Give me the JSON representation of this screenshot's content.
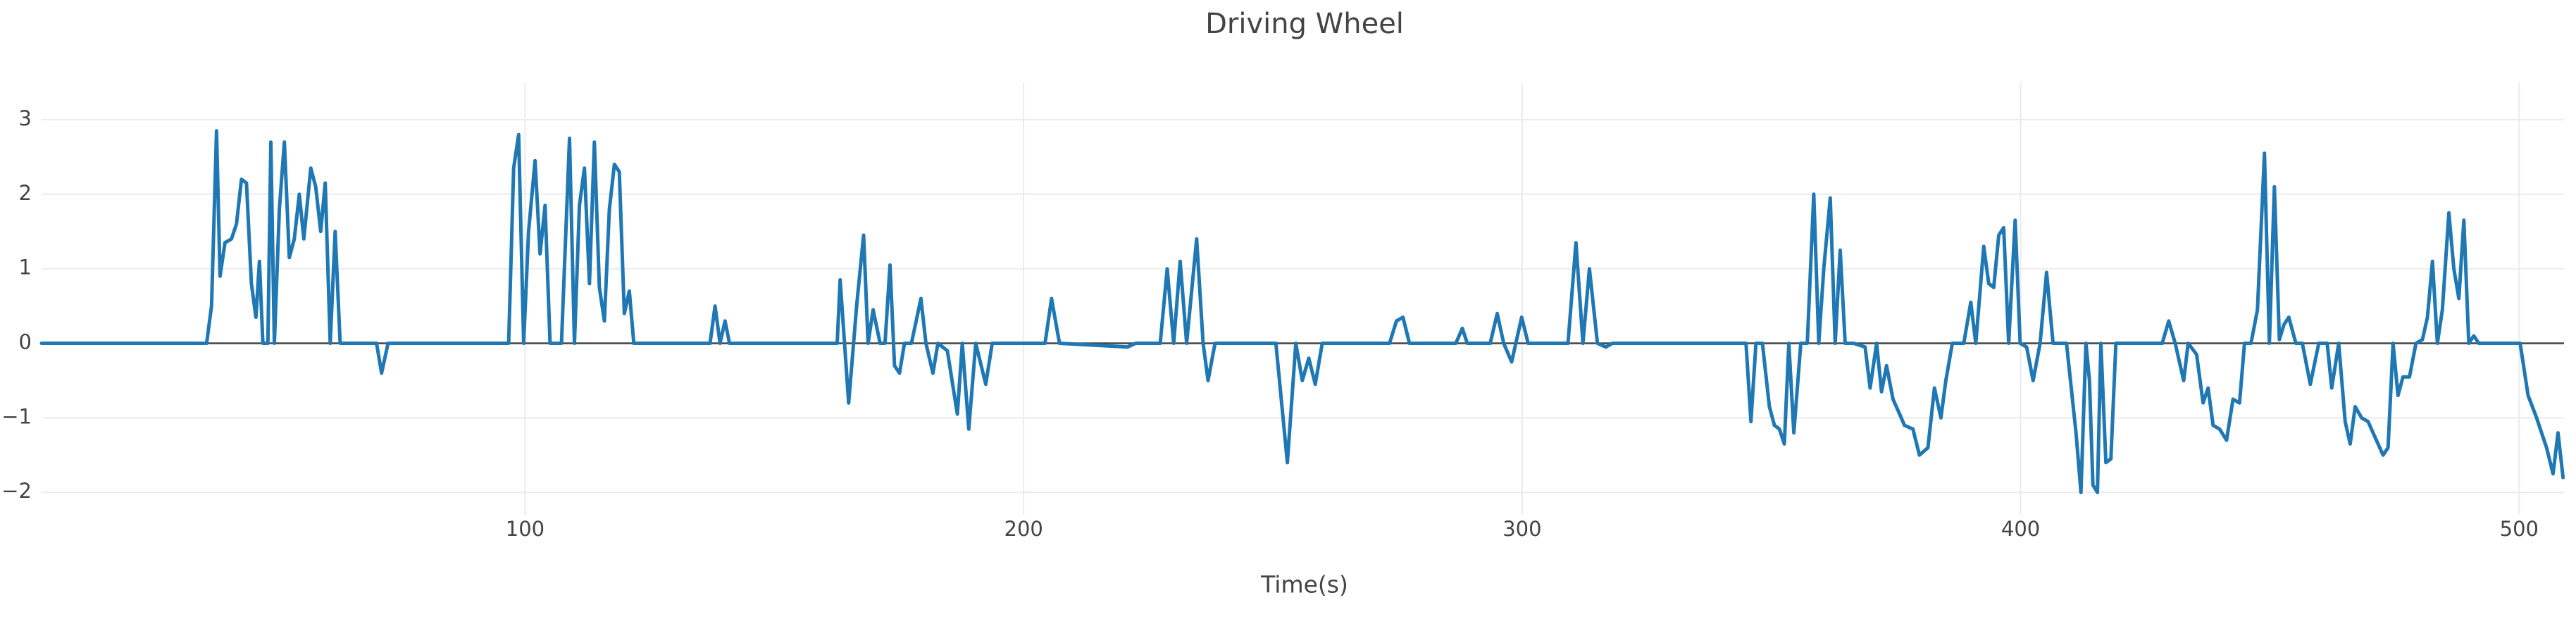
{
  "chart_data": {
    "type": "line",
    "title": "Driving Wheel",
    "x_label": "Time(s)",
    "color": "#1f77b4",
    "grid": true,
    "xlim": [
      3,
      509
    ],
    "ylim": [
      -2.3,
      3.5
    ],
    "xticks": [
      100,
      200,
      300,
      400,
      500
    ],
    "yticks": [
      {
        "value": -2,
        "label": "−2"
      },
      {
        "value": -1,
        "label": "−1"
      },
      0,
      1,
      2,
      3
    ],
    "x": [
      3,
      36.1,
      37.1,
      38.1,
      38.8,
      39.8,
      41.1,
      42.1,
      43.1,
      44.1,
      45.1,
      46.0,
      46.7,
      47.4,
      48.4,
      49.0,
      49.7,
      50.7,
      51.7,
      52.7,
      53.7,
      54.7,
      55.6,
      57.0,
      58.0,
      59.0,
      59.9,
      60.9,
      61.9,
      62.9,
      70.2,
      71.2,
      72.5,
      96.7,
      97.7,
      98.7,
      99.7,
      100.7,
      102.0,
      103.0,
      104.0,
      105.0,
      107.3,
      108.9,
      109.9,
      110.9,
      111.9,
      112.9,
      113.9,
      114.9,
      115.9,
      116.9,
      117.9,
      118.9,
      119.9,
      120.9,
      121.8,
      137.1,
      138.1,
      139.1,
      140.1,
      141.0,
      162.6,
      163.2,
      164.9,
      166.5,
      167.9,
      168.8,
      169.8,
      171.2,
      172.2,
      173.2,
      174.1,
      175.1,
      176.1,
      177.5,
      179.4,
      180.4,
      181.8,
      182.8,
      184.7,
      186.7,
      187.7,
      189.0,
      190.4,
      192.4,
      193.7,
      204.3,
      205.6,
      207.2,
      220.8,
      222.5,
      227.4,
      228.8,
      230.1,
      231.4,
      232.7,
      234.7,
      236.0,
      237.0,
      238.4,
      250.6,
      252.9,
      254.6,
      255.9,
      257.2,
      258.5,
      259.9,
      273.4,
      274.8,
      276.1,
      277.4,
      286.7,
      288.0,
      289.0,
      293.6,
      295.0,
      296.3,
      297.9,
      299.9,
      301.2,
      309.2,
      310.8,
      312.2,
      313.5,
      315.1,
      316.8,
      318.1,
      344.9,
      345.9,
      346.9,
      348.2,
      349.6,
      350.6,
      351.6,
      352.6,
      353.5,
      354.5,
      355.9,
      357.2,
      358.5,
      359.5,
      360.5,
      361.8,
      362.8,
      363.8,
      364.8,
      366.5,
      368.8,
      369.8,
      371.1,
      372.1,
      373.1,
      374.4,
      375.4,
      376.7,
      378.4,
      379.7,
      381.4,
      382.7,
      384.0,
      385.0,
      386.3,
      388.6,
      390.0,
      391.0,
      392.6,
      393.6,
      394.6,
      395.6,
      396.6,
      397.6,
      398.9,
      399.9,
      401.2,
      402.5,
      403.9,
      405.2,
      406.5,
      409.2,
      411.1,
      412.1,
      413.1,
      413.8,
      414.5,
      415.4,
      416.1,
      417.1,
      418.1,
      419.1,
      428.4,
      429.7,
      431.0,
      432.7,
      433.6,
      435.3,
      436.6,
      437.6,
      438.6,
      439.9,
      441.3,
      442.6,
      443.9,
      444.9,
      446.2,
      447.5,
      448.9,
      449.9,
      450.9,
      451.9,
      452.8,
      453.8,
      455.2,
      456.5,
      458.1,
      459.8,
      461.5,
      462.4,
      463.8,
      465.1,
      466.1,
      467.1,
      468.4,
      469.7,
      470.7,
      471.7,
      472.7,
      473.7,
      474.7,
      475.7,
      476.7,
      478.0,
      479.3,
      480.6,
      481.6,
      482.6,
      483.6,
      484.6,
      485.9,
      486.9,
      487.9,
      488.9,
      489.9,
      490.9,
      491.9,
      500.2,
      501.8,
      503.5,
      505.5,
      506.8,
      507.8,
      508.8
    ],
    "values": [
      0,
      0,
      0.5,
      2.85,
      0.9,
      1.35,
      1.4,
      1.6,
      2.2,
      2.15,
      0.8,
      0.35,
      1.1,
      0,
      0,
      2.7,
      0,
      1.8,
      2.7,
      1.15,
      1.4,
      2.0,
      1.4,
      2.35,
      2.1,
      1.5,
      2.15,
      0,
      1.5,
      0,
      0,
      -0.4,
      0,
      0,
      2.35,
      2.8,
      0,
      1.5,
      2.45,
      1.2,
      1.85,
      0,
      0,
      2.75,
      0,
      1.85,
      2.35,
      0.8,
      2.7,
      0.75,
      0.3,
      1.8,
      2.4,
      2.3,
      0.4,
      0.7,
      0,
      0,
      0.5,
      0,
      0.3,
      0,
      0,
      0.85,
      -0.8,
      0.5,
      1.45,
      0,
      0.45,
      0,
      0,
      1.05,
      -0.3,
      -0.4,
      0,
      0,
      0.6,
      0,
      -0.4,
      0,
      -0.1,
      -0.95,
      0,
      -1.15,
      0,
      -0.55,
      0,
      0,
      0.6,
      0,
      -0.05,
      0,
      0,
      1.0,
      0,
      1.1,
      0,
      1.4,
      0,
      -0.5,
      0,
      0,
      -1.6,
      0,
      -0.5,
      -0.2,
      -0.55,
      0,
      0,
      0.3,
      0.35,
      0,
      0,
      0.2,
      0,
      0,
      0.4,
      0,
      -0.25,
      0.35,
      0,
      0,
      1.35,
      0,
      1.0,
      0,
      -0.05,
      0,
      0,
      -1.05,
      0,
      0,
      -0.85,
      -1.1,
      -1.15,
      -1.35,
      0,
      -1.2,
      0,
      0,
      2.0,
      0,
      1.0,
      1.95,
      0,
      1.25,
      0,
      0,
      -0.05,
      -0.6,
      0,
      -0.65,
      -0.3,
      -0.75,
      -0.9,
      -1.1,
      -1.15,
      -1.5,
      -1.4,
      -0.6,
      -1.0,
      -0.5,
      0,
      0,
      0.55,
      0,
      1.3,
      0.8,
      0.75,
      1.45,
      1.55,
      0,
      1.65,
      0,
      -0.05,
      -0.5,
      0,
      0.95,
      0,
      0,
      -1.2,
      -2.0,
      0,
      -0.5,
      -1.9,
      -2.0,
      0,
      -1.6,
      -1.55,
      0,
      0,
      0.3,
      0,
      -0.5,
      0,
      -0.15,
      -0.8,
      -0.6,
      -1.1,
      -1.15,
      -1.3,
      -0.75,
      -0.8,
      0,
      0,
      0.45,
      2.55,
      0,
      2.1,
      0.05,
      0.25,
      0.35,
      0,
      0,
      -0.55,
      0,
      0,
      -0.6,
      0,
      -1.05,
      -1.35,
      -0.85,
      -1.0,
      -1.05,
      -1.2,
      -1.35,
      -1.5,
      -1.4,
      0,
      -0.7,
      -0.45,
      -0.45,
      0,
      0.05,
      0.35,
      1.1,
      0,
      0.45,
      1.75,
      1.0,
      0.6,
      1.65,
      0,
      0.1,
      0,
      0,
      -0.7,
      -1.0,
      -1.4,
      -1.75,
      -1.2,
      -1.8
    ]
  }
}
